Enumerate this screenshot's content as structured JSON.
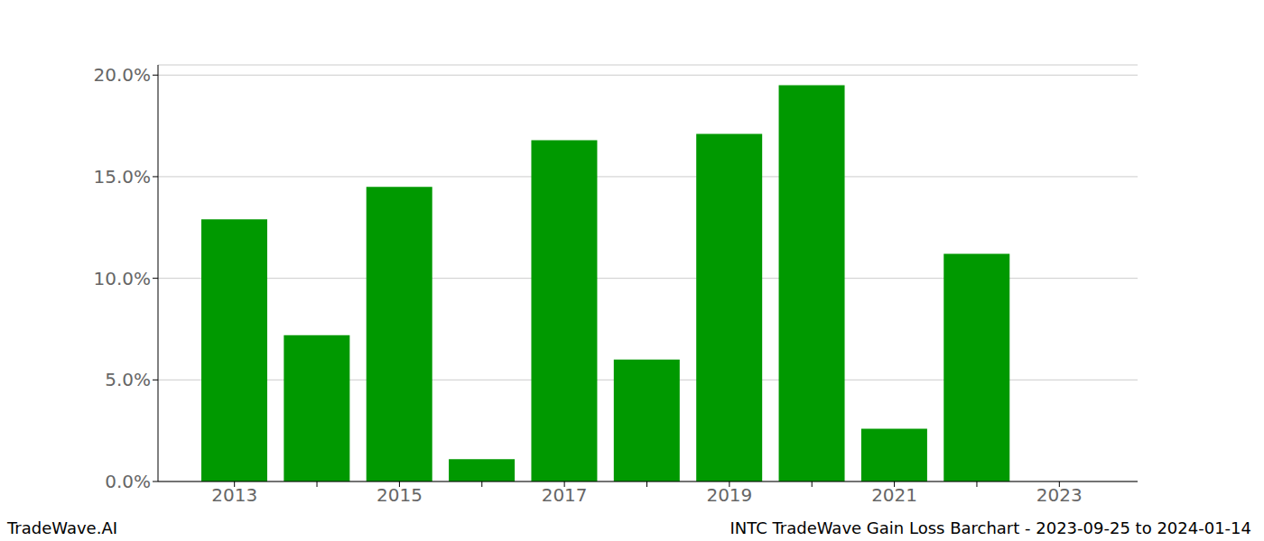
{
  "chart_data": {
    "type": "bar",
    "title": "INTC TradeWave Gain Loss Barchart - 2023-09-25 to 2024-01-14",
    "annotations": [
      "TradeWave.AI"
    ],
    "categories": [
      "2013",
      null,
      "2015",
      null,
      "2017",
      null,
      "2019",
      null,
      "2021",
      null,
      "2023"
    ],
    "values": [
      12.9,
      7.2,
      14.5,
      1.1,
      16.8,
      6.0,
      17.1,
      19.5,
      2.6,
      11.2,
      null
    ],
    "color": "#009900",
    "ylim": [
      0,
      20.5
    ],
    "yticks": [
      {
        "value": 0,
        "label": "0.0%"
      },
      {
        "value": 5,
        "label": "5.0%"
      },
      {
        "value": 10,
        "label": "10.0%"
      },
      {
        "value": 15,
        "label": "15.0%"
      },
      {
        "value": 20,
        "label": "20.0%"
      }
    ],
    "grid": true
  }
}
